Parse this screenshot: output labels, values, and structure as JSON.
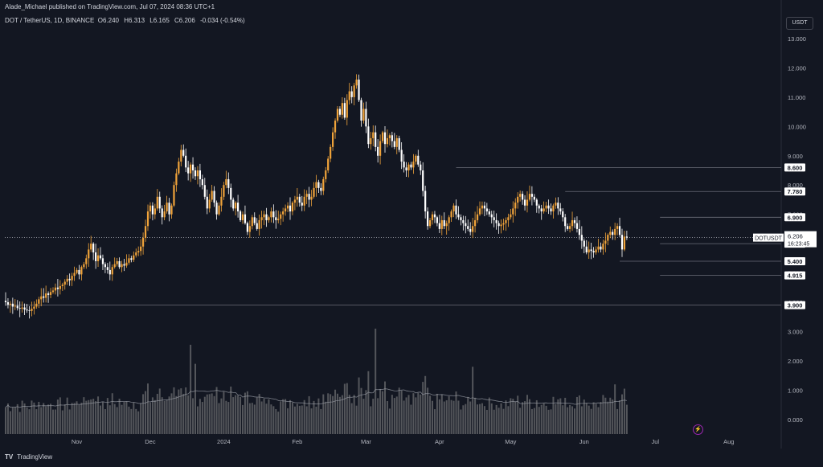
{
  "header": {
    "published_text": "Alade_Michael published on TradingView.com, Jul 07, 2024 08:36 UTC+1"
  },
  "legend": {
    "symbol_text": "DOT / TetherUS, 1D, BINANCE",
    "o_label": "O",
    "o_value": "6.240",
    "h_label": "H",
    "h_value": "6.313",
    "l_label": "L",
    "l_value": "6.165",
    "c_label": "C",
    "c_value": "6.206",
    "change": "-0.034 (-0.54%)"
  },
  "unit_button": "USDT",
  "footer": {
    "logo": "TV",
    "brand": "TradingView"
  },
  "colors": {
    "background": "#131722",
    "up_candle": "#f0a33a",
    "down_candle": "#ffffff",
    "volume": "#8a8a8a",
    "level_line": "#6a6d78",
    "current_price": "#ffffff",
    "volume_ma": "#9598a1",
    "bolt": "#e040fb"
  },
  "chart_data": {
    "type": "candlestick",
    "symbol": "DOTUSDT",
    "interval": "1D",
    "y_axis": {
      "ticks": [
        13.0,
        12.0,
        11.0,
        10.0,
        9.0,
        8.0,
        7.0,
        6.0,
        5.0,
        4.0
      ],
      "tick_labels": [
        "13.000",
        "12.000",
        "11.000",
        "10.000",
        "9.000",
        "8.000",
        "7.000",
        "6.000",
        "5.000",
        "4.000"
      ],
      "range": [
        3.4,
        13.3
      ]
    },
    "volume_axis": {
      "ticks": [
        3000,
        2000,
        1000,
        0
      ],
      "tick_labels": [
        "3.000",
        "2.000",
        "1.000",
        "0.000"
      ]
    },
    "x_axis": {
      "labels": [
        "Nov",
        "Dec",
        "2024",
        "Feb",
        "Mar",
        "Apr",
        "May",
        "Jun",
        "Jul",
        "Aug"
      ],
      "label_days": [
        30,
        61,
        92,
        123,
        152,
        183,
        213,
        244,
        274,
        305
      ],
      "start_date": "2023-10-02"
    },
    "levels": [
      {
        "value": 8.6,
        "label": "8.600",
        "from_day": 190
      },
      {
        "value": 7.78,
        "label": "7.780",
        "from_day": 236
      },
      {
        "value": 6.9,
        "label": "6.900",
        "from_day": 276
      },
      {
        "value": 6.0,
        "label": "6.000",
        "from_day": 276
      },
      {
        "value": 5.4,
        "label": "5.400",
        "from_day": 259
      },
      {
        "value": 4.915,
        "label": "4.915",
        "from_day": 276
      },
      {
        "value": 3.9,
        "label": "3.900",
        "from_day": 0
      }
    ],
    "current_price": {
      "ticker": "DOTUSDT",
      "value": "6.206",
      "countdown": "16:23:45",
      "price": 6.206
    },
    "closes": [
      4.0,
      3.92,
      3.95,
      3.85,
      3.88,
      3.8,
      3.78,
      3.82,
      3.75,
      3.72,
      3.7,
      3.78,
      3.85,
      3.95,
      4.1,
      4.2,
      4.15,
      4.3,
      4.25,
      4.35,
      4.4,
      4.5,
      4.45,
      4.55,
      4.6,
      4.7,
      4.8,
      4.75,
      4.9,
      5.0,
      5.1,
      4.95,
      5.2,
      5.3,
      5.5,
      5.8,
      6.0,
      5.7,
      5.4,
      5.6,
      5.5,
      5.3,
      5.2,
      5.1,
      4.95,
      5.2,
      5.3,
      5.4,
      5.2,
      5.3,
      5.25,
      5.35,
      5.5,
      5.45,
      5.6,
      5.7,
      5.75,
      5.9,
      6.2,
      6.6,
      7.1,
      7.3,
      7.0,
      7.2,
      7.6,
      7.2,
      6.9,
      7.1,
      7.4,
      7.0,
      7.3,
      8.0,
      8.4,
      8.8,
      9.2,
      9.0,
      8.6,
      8.4,
      8.7,
      8.5,
      8.3,
      8.5,
      8.2,
      8.0,
      7.6,
      7.2,
      7.5,
      7.8,
      7.4,
      7.0,
      7.3,
      7.6,
      8.0,
      8.2,
      7.9,
      7.5,
      7.2,
      7.4,
      7.1,
      6.8,
      7.0,
      6.7,
      6.4,
      6.6,
      6.9,
      6.7,
      6.5,
      6.8,
      6.9,
      7.0,
      6.8,
      6.9,
      7.1,
      6.9,
      6.8,
      6.85,
      7.0,
      7.1,
      7.2,
      7.3,
      7.1,
      7.4,
      7.5,
      7.6,
      7.4,
      7.3,
      7.6,
      7.7,
      7.5,
      7.6,
      7.9,
      8.1,
      7.9,
      7.8,
      8.2,
      8.5,
      8.9,
      9.3,
      9.8,
      10.2,
      10.6,
      10.4,
      10.8,
      10.3,
      10.9,
      11.2,
      11.0,
      11.4,
      11.6,
      10.9,
      10.2,
      10.6,
      10.0,
      9.4,
      9.6,
      9.8,
      9.3,
      9.0,
      9.5,
      9.8,
      9.4,
      9.6,
      9.7,
      9.5,
      9.3,
      9.6,
      9.2,
      8.8,
      8.6,
      8.5,
      8.7,
      8.6,
      8.8,
      9.0,
      8.7,
      8.5,
      7.8,
      7.1,
      6.6,
      6.8,
      7.0,
      6.9,
      6.7,
      6.5,
      6.8,
      6.6,
      6.7,
      6.9,
      7.1,
      7.3,
      7.0,
      6.9,
      6.8,
      6.7,
      6.6,
      6.5,
      6.4,
      6.6,
      6.8,
      7.0,
      7.2,
      7.3,
      7.2,
      7.1,
      7.0,
      6.9,
      6.8,
      6.7,
      6.6,
      6.65,
      6.7,
      6.8,
      6.9,
      7.0,
      7.2,
      7.4,
      7.6,
      7.7,
      7.5,
      7.3,
      7.5,
      7.7,
      7.6,
      7.5,
      7.3,
      7.2,
      7.1,
      7.2,
      7.3,
      7.2,
      7.1,
      7.3,
      7.4,
      7.2,
      7.1,
      6.9,
      6.6,
      6.5,
      6.6,
      6.8,
      6.7,
      6.5,
      6.3,
      6.1,
      5.9,
      5.7,
      5.8,
      5.75,
      5.7,
      5.8,
      5.9,
      5.8,
      6.0,
      6.1,
      6.3,
      6.4,
      6.3,
      6.5,
      6.6,
      6.3,
      5.8,
      6.24,
      6.206
    ],
    "volume_ma_value_at_end": 240
  }
}
